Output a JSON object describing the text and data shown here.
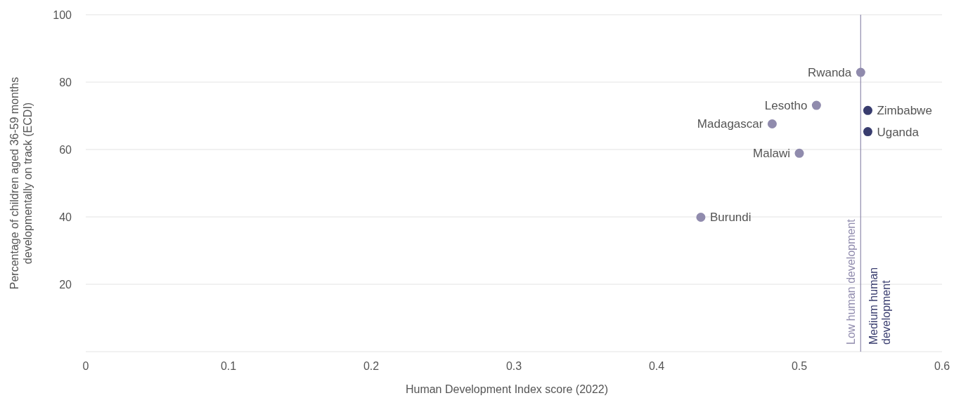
{
  "chart_data": {
    "type": "scatter",
    "xlabel": "Human Development Index score (2022)",
    "ylabel": "Percentage of children aged 36-59 months developmentally on track (ECDI)",
    "series": [
      {
        "color": "#908bad",
        "x": [
          0.431,
          0.481,
          0.5,
          0.512,
          0.543
        ],
        "values": [
          39.9,
          67.6,
          58.9,
          73.1,
          82.9
        ]
      },
      {
        "color": "#383c6e",
        "x": [
          0.548,
          0.548
        ],
        "values": [
          71.6,
          65.3
        ]
      }
    ],
    "xlim": [
      0,
      0.6
    ],
    "xticks": [
      0,
      0.1,
      0.2,
      0.3,
      0.4,
      0.5,
      0.6
    ],
    "ylim": [
      0,
      100
    ],
    "yticks": [
      {
        "value": 0,
        "label": null
      },
      20,
      40,
      60,
      80,
      100
    ],
    "grid": "y",
    "marker": "circle",
    "ref_lines": [
      {
        "axis": "x",
        "value": 0.543,
        "label": "Low human development",
        "color": "#908bad"
      }
    ],
    "annotations": [
      {
        "text": "Medium human development",
        "x": 0.543
      },
      {
        "text": "Burundi",
        "x": 0.431,
        "y": 39.9
      },
      {
        "text": "Madagascar",
        "x": 0.481,
        "y": 67.6
      },
      {
        "text": "Malawi",
        "x": 0.5,
        "y": 58.9
      },
      {
        "text": "Lesotho",
        "x": 0.512,
        "y": 73.1
      },
      {
        "text": "Rwanda",
        "x": 0.543,
        "y": 82.9
      },
      {
        "text": "Zimbabwe",
        "x": 0.548,
        "y": 71.6
      },
      {
        "text": "Uganda",
        "x": 0.548,
        "y": 65.3
      }
    ]
  }
}
